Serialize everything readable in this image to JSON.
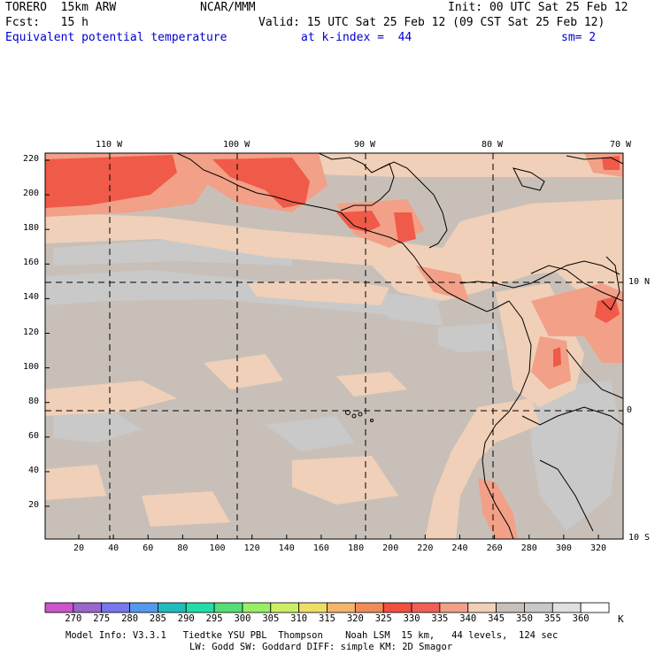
{
  "header": {
    "model": "TORERO  15km ARW",
    "center": "NCAR/MMM",
    "init": "Init: 00 UTC Sat 25 Feb 12",
    "fcst": "Fcst:   15 h",
    "valid": "Valid: 15 UTC Sat 25 Feb 12 (09 CST Sat 25 Feb 12)",
    "field": "Equivalent potential temperature",
    "level": "at k-index =  44",
    "smooth": "sm= 2"
  },
  "longitude_labels": [
    "110 W",
    "100 W",
    "90 W",
    "80 W",
    "70 W"
  ],
  "latitude_labels": [
    "10 N",
    "0",
    "10 S"
  ],
  "y_ticks": [
    "220",
    "200",
    "180",
    "160",
    "140",
    "120",
    "100",
    "80",
    "60",
    "40",
    "20"
  ],
  "x_ticks": [
    "20",
    "40",
    "60",
    "80",
    "100",
    "120",
    "140",
    "160",
    "180",
    "200",
    "220",
    "240",
    "260",
    "280",
    "300",
    "320"
  ],
  "colorbar": {
    "labels": [
      "270",
      "275",
      "280",
      "285",
      "290",
      "295",
      "300",
      "305",
      "310",
      "315",
      "320",
      "325",
      "330",
      "335",
      "340",
      "345",
      "350",
      "355",
      "360"
    ],
    "unit": "K",
    "colors": [
      "#cc55cc",
      "#9966cc",
      "#7777ee",
      "#5599ee",
      "#22bbbb",
      "#22ddaa",
      "#55dd77",
      "#99ee66",
      "#ccee66",
      "#eedd66",
      "#f5b56a",
      "#f08c5a",
      "#f05040",
      "#f26055",
      "#f2a088",
      "#f0d0b8",
      "#c8c0b8",
      "#c8c8c8",
      "#e0e0e0",
      "#ffffff"
    ]
  },
  "footer": {
    "line1": "Model Info: V3.3.1   Tiedtke YSU PBL  Thompson    Noah LSM  15 km,   44 levels,  124 sec",
    "line2": "LW: Godd SW: Goddard DIFF: simple KM: 2D Smagor"
  }
}
